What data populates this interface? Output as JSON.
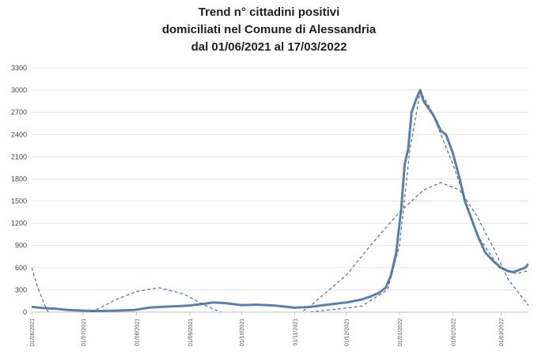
{
  "chart_data": {
    "type": "line",
    "title_lines": [
      "Trend n° cittadini positivi",
      "domiciliati nel Comune di Alessandria",
      "dal 01/06/2021 al 17/03/2022"
    ],
    "x_start": "2021-06-01",
    "x_end": "2022-03-17",
    "ylim": [
      0,
      3300
    ],
    "y_ticks": [
      0,
      300,
      600,
      900,
      1200,
      1500,
      1800,
      2100,
      2400,
      2700,
      3000,
      3300
    ],
    "x_ticks": [
      {
        "date": "2021-06-01",
        "label": "01/06/2021"
      },
      {
        "date": "2021-07-01",
        "label": "01/07/2021"
      },
      {
        "date": "2021-08-01",
        "label": "01/08/2021"
      },
      {
        "date": "2021-09-01",
        "label": "01/09/2021"
      },
      {
        "date": "2021-10-01",
        "label": "01/10/2021"
      },
      {
        "date": "2021-11-01",
        "label": "01/11/2021"
      },
      {
        "date": "2021-12-01",
        "label": "01/12/2021"
      },
      {
        "date": "2022-01-01",
        "label": "01/01/2022"
      },
      {
        "date": "2022-02-01",
        "label": "01/02/2022"
      },
      {
        "date": "2022-03-01",
        "label": "01/03/2022"
      }
    ],
    "grid": true,
    "series": [
      {
        "style": "solid",
        "color": "#5b7fad",
        "points": [
          [
            "2021-06-01",
            70
          ],
          [
            "2021-06-08",
            55
          ],
          [
            "2021-06-15",
            45
          ],
          [
            "2021-06-22",
            30
          ],
          [
            "2021-07-01",
            20
          ],
          [
            "2021-07-10",
            15
          ],
          [
            "2021-07-20",
            20
          ],
          [
            "2021-07-31",
            30
          ],
          [
            "2021-08-08",
            60
          ],
          [
            "2021-08-15",
            70
          ],
          [
            "2021-08-25",
            80
          ],
          [
            "2021-09-01",
            90
          ],
          [
            "2021-09-08",
            110
          ],
          [
            "2021-09-15",
            130
          ],
          [
            "2021-09-22",
            120
          ],
          [
            "2021-10-01",
            95
          ],
          [
            "2021-10-10",
            100
          ],
          [
            "2021-10-20",
            90
          ],
          [
            "2021-11-01",
            60
          ],
          [
            "2021-11-10",
            70
          ],
          [
            "2021-11-18",
            95
          ],
          [
            "2021-12-01",
            130
          ],
          [
            "2021-12-10",
            170
          ],
          [
            "2021-12-15",
            210
          ],
          [
            "2021-12-20",
            260
          ],
          [
            "2021-12-24",
            330
          ],
          [
            "2021-12-27",
            500
          ],
          [
            "2021-12-30",
            800
          ],
          [
            "2022-01-02",
            1400
          ],
          [
            "2022-01-04",
            2000
          ],
          [
            "2022-01-06",
            2200
          ],
          [
            "2022-01-08",
            2700
          ],
          [
            "2022-01-11",
            2900
          ],
          [
            "2022-01-13",
            3000
          ],
          [
            "2022-01-15",
            2850
          ],
          [
            "2022-01-18",
            2750
          ],
          [
            "2022-01-21",
            2650
          ],
          [
            "2022-01-25",
            2450
          ],
          [
            "2022-01-28",
            2400
          ],
          [
            "2022-02-01",
            2150
          ],
          [
            "2022-02-05",
            1800
          ],
          [
            "2022-02-08",
            1500
          ],
          [
            "2022-02-12",
            1250
          ],
          [
            "2022-02-16",
            1000
          ],
          [
            "2022-02-20",
            800
          ],
          [
            "2022-02-25",
            680
          ],
          [
            "2022-03-01",
            600
          ],
          [
            "2022-03-05",
            555
          ],
          [
            "2022-03-08",
            540
          ],
          [
            "2022-03-11",
            565
          ],
          [
            "2022-03-15",
            600
          ],
          [
            "2022-03-17",
            650
          ]
        ]
      },
      {
        "style": "dashed",
        "color": "#4a6fa5",
        "points": [
          [
            "2021-06-01",
            600
          ],
          [
            "2021-06-05",
            300
          ],
          [
            "2021-06-10",
            20
          ],
          [
            "2021-06-20",
            -120
          ],
          [
            "2021-07-05",
            -10
          ],
          [
            "2021-07-20",
            170
          ],
          [
            "2021-08-01",
            280
          ],
          [
            "2021-08-14",
            330
          ],
          [
            "2021-08-28",
            250
          ],
          [
            "2021-09-10",
            90
          ],
          [
            "2021-09-25",
            -60
          ],
          [
            "2021-10-15",
            -180
          ],
          [
            "2021-11-01",
            -60
          ],
          [
            "2021-11-10",
            80
          ],
          [
            "2021-12-01",
            500
          ],
          [
            "2021-12-15",
            900
          ],
          [
            "2022-01-01",
            1350
          ],
          [
            "2022-01-15",
            1650
          ],
          [
            "2022-01-25",
            1750
          ],
          [
            "2022-02-05",
            1650
          ],
          [
            "2022-02-15",
            1300
          ],
          [
            "2022-02-25",
            850
          ],
          [
            "2022-03-05",
            450
          ],
          [
            "2022-03-17",
            90
          ]
        ]
      },
      {
        "style": "dashed",
        "color": "#4a6fa5",
        "points": [
          [
            "2021-11-10",
            0
          ],
          [
            "2021-12-10",
            80
          ],
          [
            "2021-12-25",
            300
          ],
          [
            "2022-01-01",
            900
          ],
          [
            "2022-01-07",
            2200
          ],
          [
            "2022-01-13",
            2980
          ],
          [
            "2022-01-19",
            2750
          ],
          [
            "2022-02-01",
            2000
          ],
          [
            "2022-02-15",
            1050
          ],
          [
            "2022-02-28",
            600
          ],
          [
            "2022-03-10",
            520
          ],
          [
            "2022-03-17",
            560
          ]
        ]
      }
    ]
  }
}
